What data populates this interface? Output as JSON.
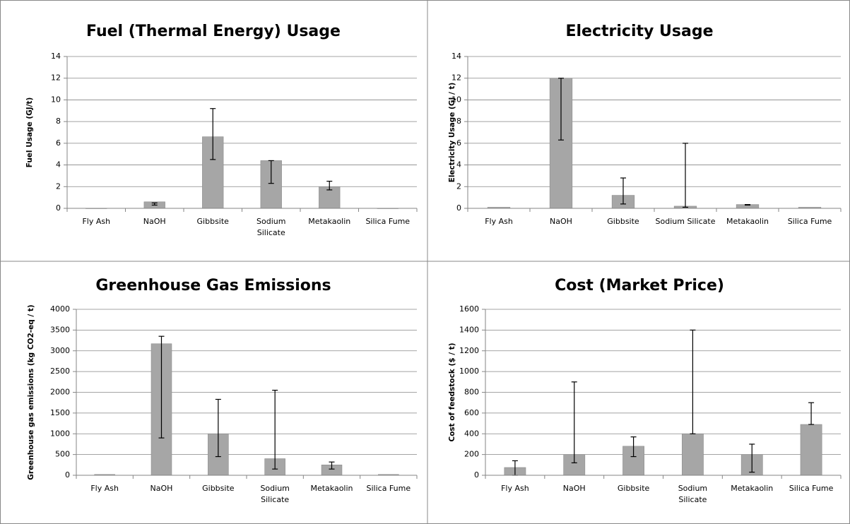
{
  "chart_data": [
    {
      "type": "bar",
      "title": "Fuel (Thermal Energy) Usage",
      "y_label": "Fuel Usage (GJ/t)",
      "categories": [
        "Fly Ash",
        "NaOH",
        "Gibbsite",
        "Sodium Silicate",
        "Metakaolin",
        "Silica Fume"
      ],
      "values": [
        0,
        0.6,
        6.6,
        4.4,
        2.0,
        0
      ],
      "err_low": [
        null,
        0.3,
        4.5,
        2.3,
        1.7,
        null
      ],
      "err_high": [
        null,
        0.5,
        9.2,
        4.4,
        2.5,
        null
      ],
      "ylim": [
        0,
        14
      ],
      "yticks": [
        0,
        2,
        4,
        6,
        8,
        10,
        12,
        14
      ],
      "color": "#a6a6a6",
      "grid": true
    },
    {
      "type": "bar",
      "title": "Electricity Usage",
      "y_label": "Electricity Usage (GJ / t)",
      "categories": [
        "Fly Ash",
        "NaOH",
        "Gibbsite",
        "Sodium Silicate",
        "Metakaolin",
        "Silica Fume"
      ],
      "values": [
        0.1,
        12,
        1.2,
        0.2,
        0.35,
        0.1
      ],
      "err_low": [
        null,
        6.3,
        0.4,
        0.1,
        0.3,
        null
      ],
      "err_high": [
        null,
        12,
        2.8,
        6.0,
        0.35,
        null
      ],
      "ylim": [
        0,
        14
      ],
      "yticks": [
        0,
        2,
        4,
        6,
        8,
        10,
        12,
        14
      ],
      "color": "#a6a6a6",
      "grid": true
    },
    {
      "type": "bar",
      "title": "Greenhouse Gas Emissions",
      "y_label": "Greenhouse gas emissions (kg CO2-eq / t)",
      "categories": [
        "Fly Ash",
        "NaOH",
        "Gibbsite",
        "Sodium Silicate",
        "Metakaolin",
        "Silica Fume"
      ],
      "values": [
        20,
        3170,
        1000,
        400,
        250,
        20
      ],
      "err_low": [
        null,
        900,
        450,
        150,
        150,
        null
      ],
      "err_high": [
        null,
        3350,
        1830,
        2050,
        320,
        null
      ],
      "ylim": [
        0,
        4000
      ],
      "yticks": [
        0,
        500,
        1000,
        1500,
        2000,
        2500,
        3000,
        3500,
        4000
      ],
      "color": "#a6a6a6",
      "grid": true
    },
    {
      "type": "bar",
      "title": "Cost (Market Price)",
      "y_label": "Cost of feedstock ($ / t)",
      "categories": [
        "Fly Ash",
        "NaOH",
        "Gibbsite",
        "Sodium Silicate",
        "Metakaolin",
        "Silica Fume"
      ],
      "values": [
        75,
        200,
        280,
        400,
        200,
        490
      ],
      "err_low": [
        0,
        120,
        180,
        400,
        30,
        490
      ],
      "err_high": [
        140,
        900,
        370,
        1400,
        300,
        700
      ],
      "ylim": [
        0,
        1600
      ],
      "yticks": [
        0,
        200,
        400,
        600,
        800,
        1000,
        1200,
        1400,
        1600
      ],
      "color": "#a6a6a6",
      "grid": true
    }
  ]
}
